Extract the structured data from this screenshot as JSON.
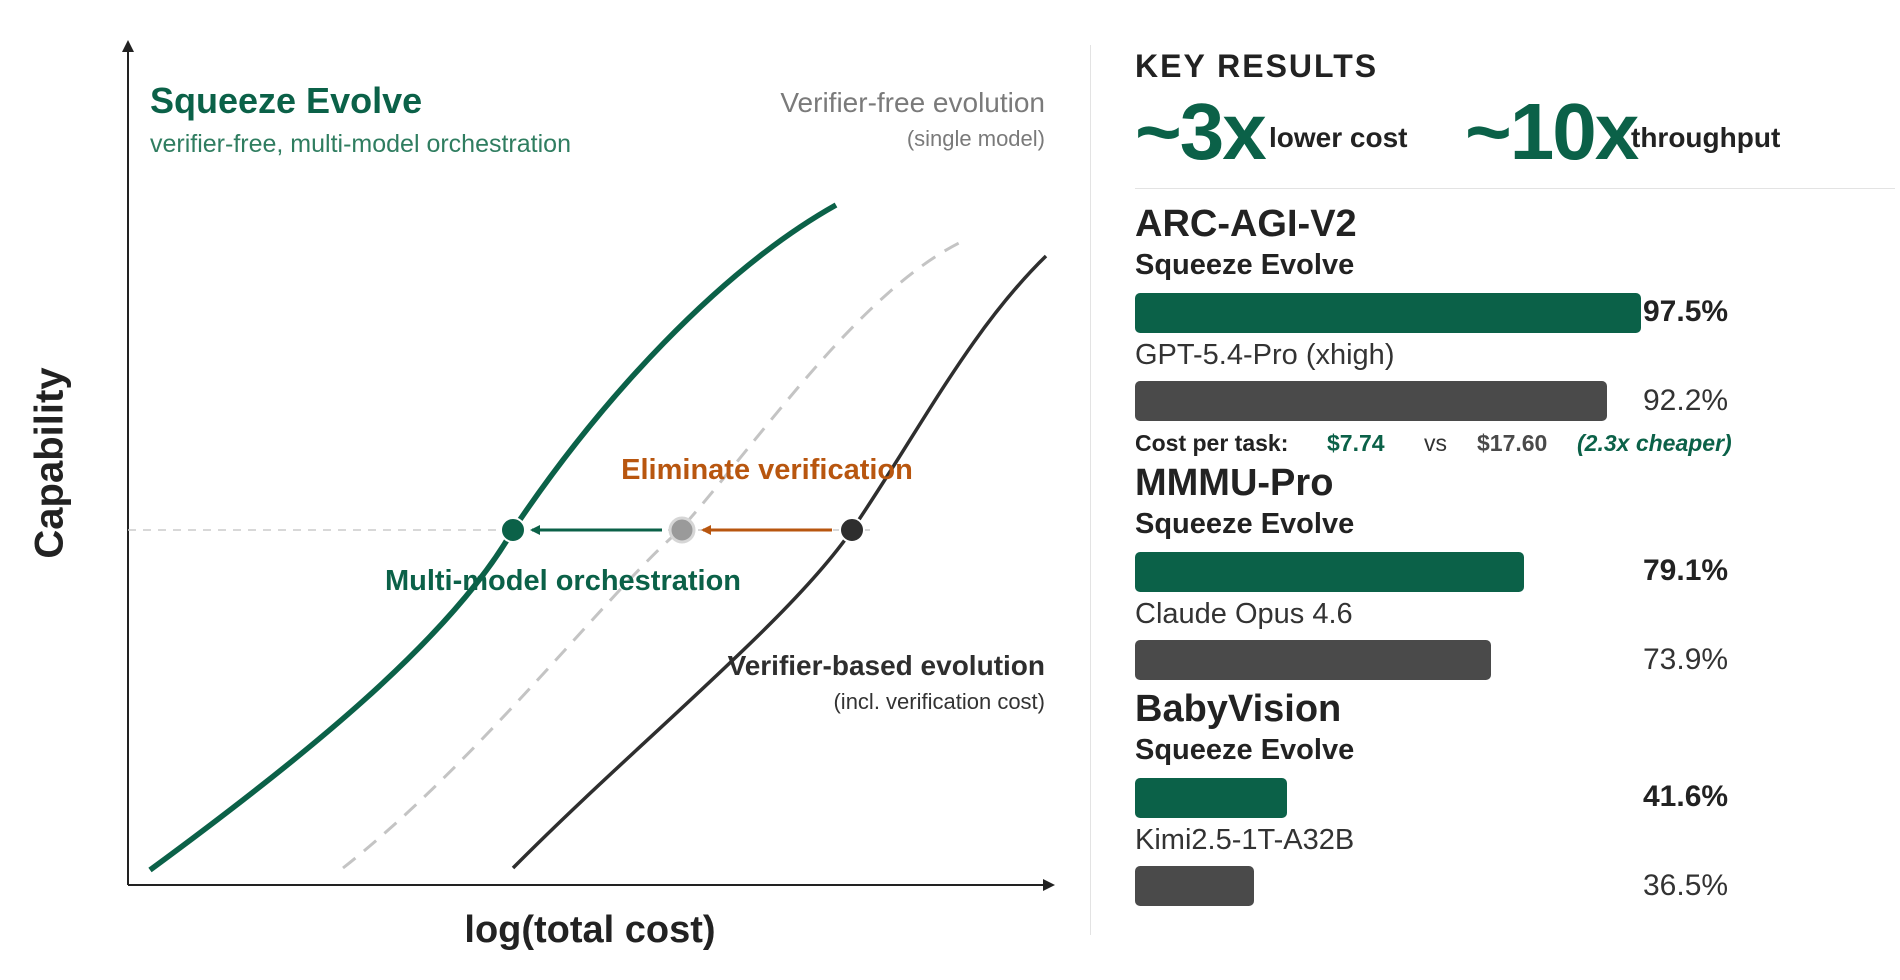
{
  "chart_data": [
    {
      "type": "line",
      "title": "Squeeze Evolve",
      "subtitle": "verifier-free, multi-model orchestration",
      "xlabel": "log(total cost)",
      "ylabel": "Capability",
      "series": [
        {
          "name": "Squeeze Evolve",
          "style": "solid",
          "color": "#0b6148"
        },
        {
          "name": "Verifier-free evolution",
          "sublabel": "(single model)",
          "style": "dashed",
          "color": "#c4c4c4"
        },
        {
          "name": "Verifier-based evolution",
          "sublabel": "(incl. verification cost)",
          "style": "solid",
          "color": "#2e2e2e"
        }
      ],
      "annotations": [
        {
          "text": "Eliminate verification",
          "color": "#b8560f"
        },
        {
          "text": "Multi-model orchestration",
          "color": "#0b6148"
        }
      ],
      "grid": false,
      "axis_ticks": false
    },
    {
      "type": "bar",
      "orientation": "horizontal",
      "heading": "KEY RESULTS",
      "highlights": [
        {
          "value": "~3x",
          "label": "lower cost"
        },
        {
          "value": "~10x",
          "label": "throughput"
        }
      ],
      "xlim": [
        0,
        100
      ],
      "benchmarks": [
        {
          "name": "ARC-AGI-V2",
          "rows": [
            {
              "label": "Squeeze Evolve",
              "value": 97.5,
              "display": "97.5%",
              "kind": "ours"
            },
            {
              "label": "GPT-5.4-Pro (xhigh)",
              "value": 92.2,
              "display": "92.2%",
              "kind": "base"
            }
          ],
          "cost": {
            "label": "Cost per task:",
            "ours": "$7.74",
            "vs": "vs",
            "base": "$17.60",
            "note": "(2.3x cheaper)"
          }
        },
        {
          "name": "MMMU-Pro",
          "rows": [
            {
              "label": "Squeeze Evolve",
              "value": 79.1,
              "display": "79.1%",
              "kind": "ours"
            },
            {
              "label": "Claude Opus 4.6",
              "value": 73.9,
              "display": "73.9%",
              "kind": "base"
            }
          ]
        },
        {
          "name": "BabyVision",
          "rows": [
            {
              "label": "Squeeze Evolve",
              "value": 41.6,
              "display": "41.6%",
              "kind": "ours"
            },
            {
              "label": "Kimi2.5-1T-A32B",
              "value": 36.5,
              "display": "36.5%",
              "kind": "base"
            }
          ]
        }
      ]
    }
  ],
  "colors": {
    "green": "#0b6148",
    "orange": "#b8560f",
    "dark": "#2e2e2e",
    "gray": "#c4c4c4",
    "bar_gray": "#4a4a4a"
  }
}
